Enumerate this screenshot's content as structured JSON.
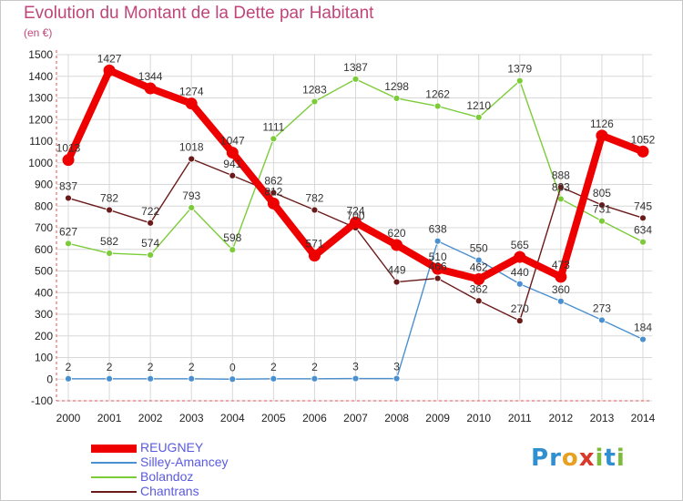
{
  "header": {
    "title": "Evolution du Montant de la Dette par Habitant",
    "subtitle": "(en €)"
  },
  "logo": {
    "text": "Proxiti"
  },
  "chart_data": {
    "type": "line",
    "title": "Evolution du Montant de la Dette par Habitant",
    "ylabel": "(en €)",
    "x": [
      "2000",
      "2001",
      "2002",
      "2003",
      "2004",
      "2005",
      "2006",
      "2007",
      "2008",
      "2009",
      "2010",
      "2011",
      "2012",
      "2013",
      "2014"
    ],
    "ylim": [
      -100,
      1500
    ],
    "yticks": [
      -100,
      0,
      100,
      200,
      300,
      400,
      500,
      600,
      700,
      800,
      900,
      1000,
      1100,
      1200,
      1300,
      1400,
      1500
    ],
    "grid": true,
    "legend_position": "bottom-left",
    "series": [
      {
        "name": "REUGNEY",
        "color": "#ee0000",
        "values": [
          1013,
          1427,
          1344,
          1274,
          1047,
          812,
          571,
          724,
          620,
          510,
          462,
          565,
          473,
          1126,
          1052
        ]
      },
      {
        "name": "Silley-Amancey",
        "color": "#4a8fcf",
        "values": [
          2,
          2,
          2,
          2,
          0,
          2,
          2,
          3,
          3,
          638,
          550,
          440,
          360,
          273,
          184
        ]
      },
      {
        "name": "Bolandoz",
        "color": "#7ccc3a",
        "values": [
          627,
          582,
          574,
          793,
          598,
          1111,
          1283,
          1387,
          1298,
          1262,
          1210,
          1379,
          833,
          731,
          634
        ]
      },
      {
        "name": "Chantrans",
        "color": "#6b1a1a",
        "values": [
          837,
          782,
          722,
          1018,
          941,
          862,
          782,
          700,
          449,
          466,
          362,
          270,
          888,
          805,
          745
        ]
      }
    ]
  }
}
